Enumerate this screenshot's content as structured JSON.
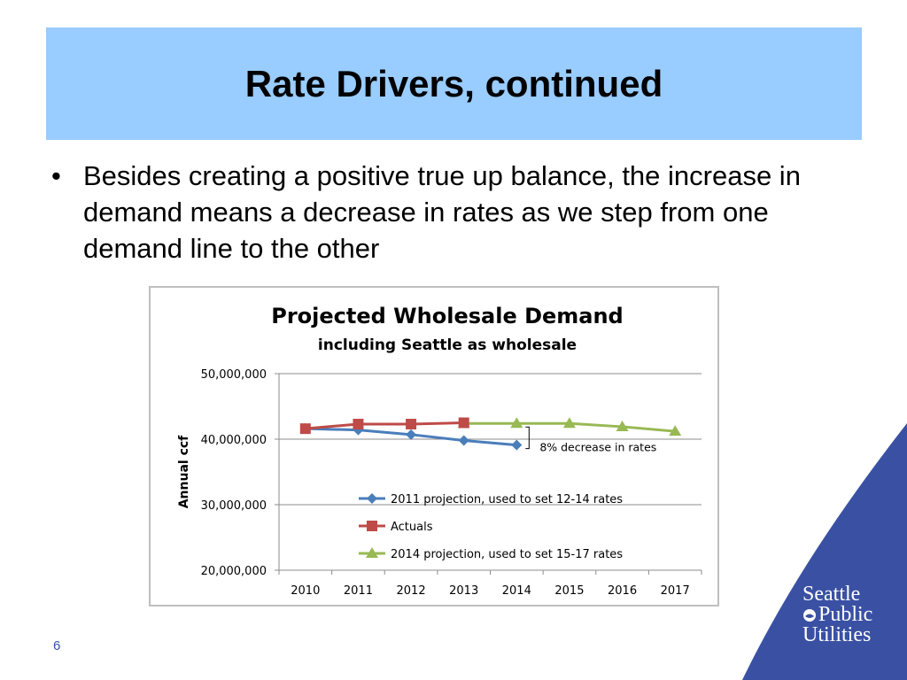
{
  "slide": {
    "title": "Rate Drivers, continued",
    "bullet": "Besides creating a positive true up balance, the increase in demand means a decrease in rates as we step from one demand line to the other",
    "bullet_marker": "•",
    "page_number": "6"
  },
  "logo": {
    "line1": "Seattle",
    "line2": "Public",
    "line3": "Utilities",
    "icon": "sun-drop-icon"
  },
  "colors": {
    "title_bg": "#99ccff",
    "swoosh": "#3a51a3",
    "series_2011": "#4a7ebb",
    "series_actuals": "#be4b48",
    "series_2014": "#98b954"
  },
  "chart_data": {
    "type": "line",
    "title": "Projected Wholesale Demand",
    "subtitle": "including Seattle as wholesale",
    "ylabel": "Annual ccf",
    "xlabel": "",
    "categories": [
      "2010",
      "2011",
      "2012",
      "2013",
      "2014",
      "2015",
      "2016",
      "2017"
    ],
    "ylim": [
      20000000,
      50000000
    ],
    "yticks": [
      20000000,
      30000000,
      40000000,
      50000000
    ],
    "ytick_labels": [
      "20,000,000",
      "30,000,000",
      "40,000,000",
      "50,000,000"
    ],
    "grid": true,
    "legend_position": "inside-bottom",
    "annotation": "8% decrease in rates",
    "series": [
      {
        "name": "2011 projection, used to set 12-14 rates",
        "marker": "diamond",
        "values": [
          41600000,
          41400000,
          40700000,
          39800000,
          39100000,
          null,
          null,
          null
        ]
      },
      {
        "name": "Actuals",
        "marker": "square",
        "values": [
          41600000,
          42300000,
          42300000,
          42500000,
          null,
          null,
          null,
          null
        ]
      },
      {
        "name": "2014 projection, used to set 15-17 rates",
        "marker": "triangle",
        "values": [
          null,
          null,
          null,
          42400000,
          42400000,
          42400000,
          41900000,
          41200000
        ]
      }
    ]
  }
}
